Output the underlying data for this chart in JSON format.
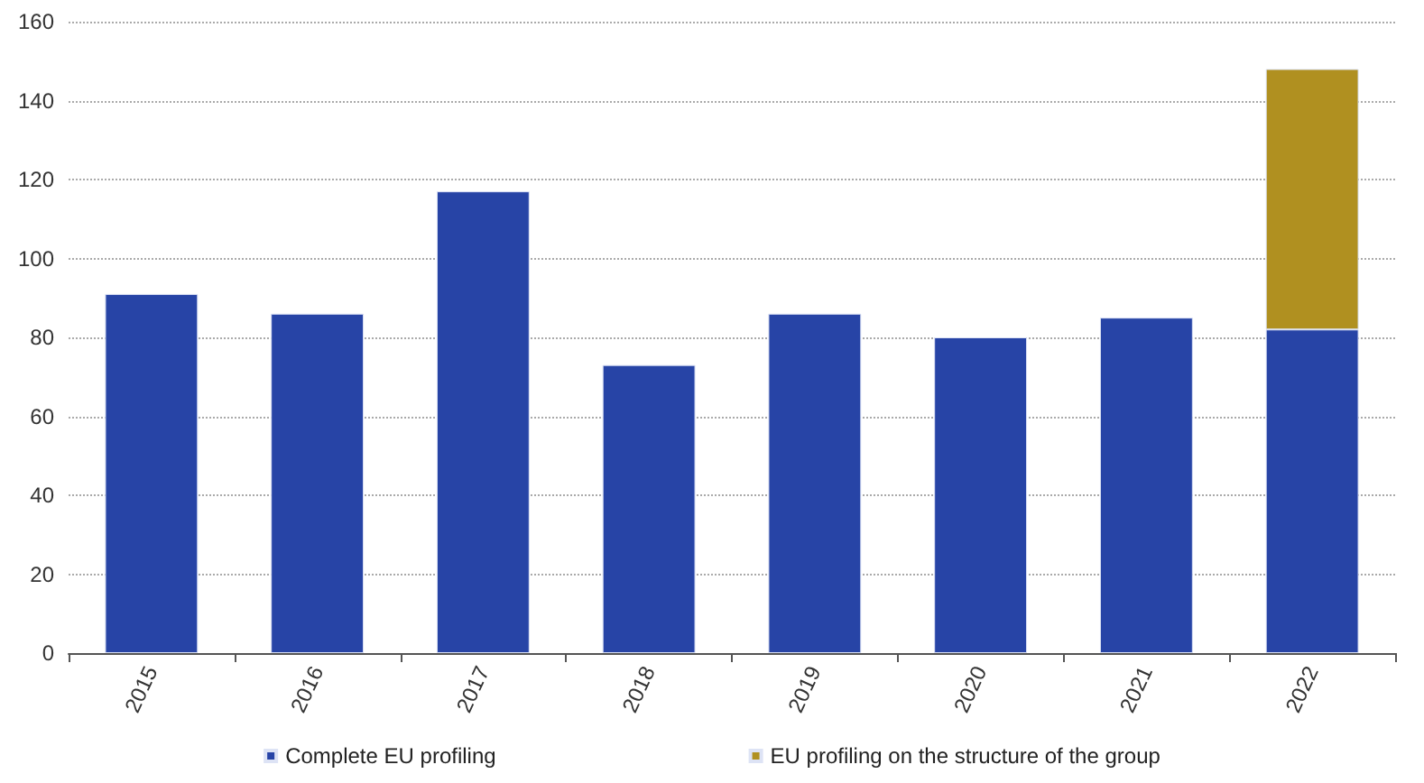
{
  "chart_data": {
    "type": "bar",
    "stacked": true,
    "categories": [
      "2015",
      "2016",
      "2017",
      "2018",
      "2019",
      "2020",
      "2021",
      "2022"
    ],
    "series": [
      {
        "name": "Complete EU profiling",
        "color": "#2744a6",
        "values": [
          91,
          86,
          117,
          73,
          86,
          80,
          85,
          82
        ]
      },
      {
        "name": "EU profiling on the structure of the group",
        "color": "#b09020",
        "values": [
          null,
          null,
          null,
          null,
          null,
          null,
          null,
          66
        ]
      }
    ],
    "ylim": [
      0,
      160
    ],
    "yticks": [
      0,
      20,
      40,
      60,
      80,
      100,
      120,
      140,
      160
    ],
    "grid": "y",
    "legend": "bottom"
  }
}
